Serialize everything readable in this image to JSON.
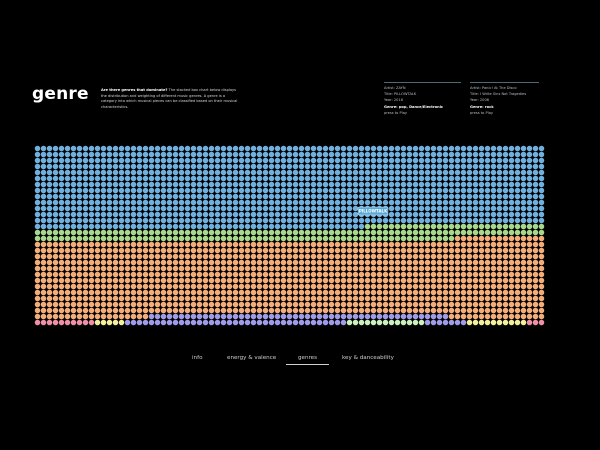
{
  "header": {
    "title": "genre",
    "intro_question": "Are there genres that dominate?",
    "intro_text": "The stacked box chart below displays the distribution and weighting of different music genres. A genre is a category into which musical pieces can be classified based on their musical characteristics."
  },
  "track_cards": [
    {
      "artist": "Artist: ZAYN",
      "title": "Title: PILLOWTALK",
      "year": "Year: 2016",
      "genre": "Genre: pop, Dance/Electronic",
      "action": "press to Play"
    },
    {
      "artist": "Artist: Panic! At The Disco",
      "title": "Title: I Write Sins Not Tragedies",
      "year": "Year: 2006",
      "genre": "Genre: rock",
      "action": "press to Play"
    }
  ],
  "tooltip": {
    "label": "PILLOWTALK"
  },
  "nav": {
    "items": [
      {
        "label": "info",
        "active": false
      },
      {
        "label": "energy & valence",
        "active": false
      },
      {
        "label": "genres",
        "active": true
      },
      {
        "label": "key & danceability",
        "active": false
      }
    ]
  },
  "colors": {
    "background": "#000000",
    "blue": "#6fb0de",
    "green": "#a7d88c",
    "orange": "#f3ad78",
    "purple": "#9f9be8",
    "pink": "#ef8fa8",
    "yellow": "#f4ef9e",
    "mint": "#c9f2bd",
    "tooltip_bg": "#5aa9d8"
  },
  "chart_data": {
    "type": "stacked-dot-grid",
    "columns": 85,
    "rows": 30,
    "layers": [
      {
        "key": "pink",
        "rows": 1,
        "columns": 10
      },
      {
        "key": "yellow",
        "rows": 1,
        "columns": 5
      },
      {
        "key": "purple",
        "rows": 1,
        "columns": 37
      },
      {
        "key": "mint",
        "rows": 1,
        "columns": 13
      },
      {
        "key": "purple",
        "rows": 1,
        "columns": 7
      },
      {
        "key": "yellow",
        "rows": 1,
        "columns": 10
      },
      {
        "key": "pink",
        "rows": 1,
        "columns": 3
      },
      {
        "key": "purple",
        "rows": 0.6,
        "columns": 53
      },
      {
        "key": "orange",
        "rows": 13.3,
        "columns": 85
      },
      {
        "key": "green",
        "rows": 1.8,
        "columns": 85
      },
      {
        "key": "blue",
        "rows": 16,
        "columns": 85
      }
    ]
  }
}
